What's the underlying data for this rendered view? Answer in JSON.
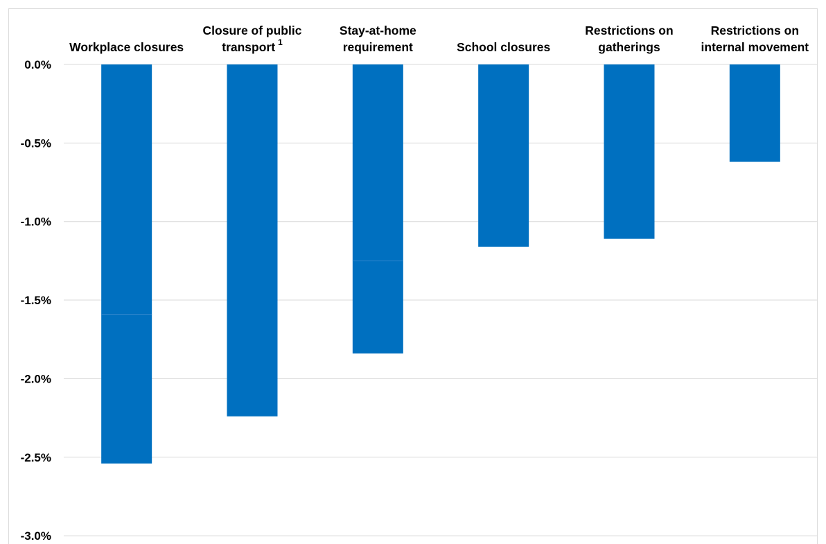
{
  "chart_data": {
    "type": "bar",
    "orientation": "vertical",
    "x_axis_position": "top",
    "grid": true,
    "categories": [
      {
        "lines": [
          "Workplace closures"
        ]
      },
      {
        "lines": [
          "Closure of public",
          "transport"
        ],
        "superscript": "1"
      },
      {
        "lines": [
          "Stay-at-home",
          "requirement"
        ]
      },
      {
        "lines": [
          "School closures"
        ]
      },
      {
        "lines": [
          "Restrictions on",
          "gatherings"
        ]
      },
      {
        "lines": [
          "Restrictions on",
          "internal movement"
        ]
      }
    ],
    "values": [
      -2.54,
      -2.24,
      -1.84,
      -1.16,
      -1.11,
      -0.62
    ],
    "segment_breaks": [
      -1.59,
      null,
      -1.25,
      null,
      null,
      null
    ],
    "ylim": [
      -3.0,
      0.0
    ],
    "yticks": [
      0.0,
      -0.5,
      -1.0,
      -1.5,
      -2.0,
      -2.5,
      -3.0
    ],
    "ytick_labels": [
      "0.0%",
      "-0.5%",
      "-1.0%",
      "-1.5%",
      "-2.0%",
      "-2.5%",
      "-3.0%"
    ],
    "bar_color": "#0070c0",
    "grid_color": "#d9d9d9"
  }
}
